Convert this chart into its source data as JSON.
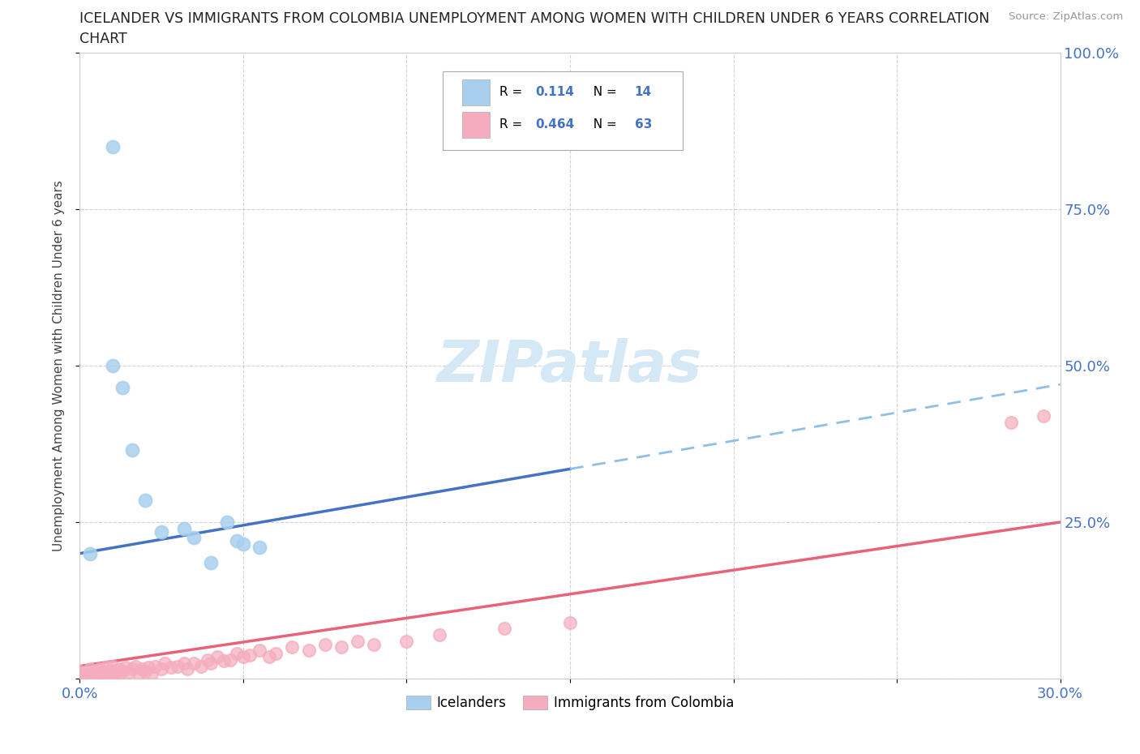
{
  "title_line1": "ICELANDER VS IMMIGRANTS FROM COLOMBIA UNEMPLOYMENT AMONG WOMEN WITH CHILDREN UNDER 6 YEARS CORRELATION",
  "title_line2": "CHART",
  "source": "Source: ZipAtlas.com",
  "ylabel": "Unemployment Among Women with Children Under 6 years",
  "xlim": [
    0.0,
    0.3
  ],
  "ylim": [
    0.0,
    1.0
  ],
  "xtick_pos": [
    0.0,
    0.05,
    0.1,
    0.15,
    0.2,
    0.25,
    0.3
  ],
  "xticklabels": [
    "0.0%",
    "",
    "",
    "",
    "",
    "",
    "30.0%"
  ],
  "ytick_pos": [
    0.0,
    0.25,
    0.5,
    0.75,
    1.0
  ],
  "yticklabels": [
    "",
    "25.0%",
    "50.0%",
    "75.0%",
    "100.0%"
  ],
  "blue_scatter_color": "#A8D0EE",
  "pink_scatter_color": "#F4ACBE",
  "blue_line_color": "#4472C4",
  "pink_line_color": "#E8637A",
  "blue_dashed_color": "#8DBFE8",
  "icelanders_R": 0.114,
  "icelanders_N": 14,
  "colombia_R": 0.464,
  "colombia_N": 63,
  "watermark_color": "#D5E8F5",
  "background_color": "#FFFFFF",
  "grid_color": "#C8C8C8",
  "tick_label_color": "#4472C4",
  "title_color": "#222222",
  "source_color": "#999999",
  "ylabel_color": "#444444",
  "icelanders_x": [
    0.003,
    0.01,
    0.01,
    0.013,
    0.016,
    0.02,
    0.025,
    0.032,
    0.035,
    0.04,
    0.045,
    0.048,
    0.05,
    0.055
  ],
  "icelanders_y": [
    0.2,
    0.85,
    0.5,
    0.465,
    0.365,
    0.285,
    0.235,
    0.24,
    0.225,
    0.185,
    0.25,
    0.22,
    0.215,
    0.21
  ],
  "colombia_x": [
    0.0,
    0.0,
    0.0,
    0.002,
    0.003,
    0.003,
    0.004,
    0.005,
    0.005,
    0.006,
    0.006,
    0.007,
    0.008,
    0.008,
    0.009,
    0.01,
    0.01,
    0.01,
    0.011,
    0.012,
    0.012,
    0.013,
    0.014,
    0.015,
    0.016,
    0.017,
    0.018,
    0.019,
    0.02,
    0.021,
    0.022,
    0.023,
    0.025,
    0.026,
    0.028,
    0.03,
    0.032,
    0.033,
    0.035,
    0.037,
    0.039,
    0.04,
    0.042,
    0.044,
    0.046,
    0.048,
    0.05,
    0.052,
    0.055,
    0.058,
    0.06,
    0.065,
    0.07,
    0.075,
    0.08,
    0.085,
    0.09,
    0.1,
    0.11,
    0.13,
    0.15,
    0.285,
    0.295
  ],
  "colombia_y": [
    0.005,
    0.008,
    0.012,
    0.005,
    0.01,
    0.015,
    0.008,
    0.005,
    0.012,
    0.008,
    0.015,
    0.01,
    0.005,
    0.018,
    0.01,
    0.005,
    0.012,
    0.02,
    0.01,
    0.008,
    0.015,
    0.012,
    0.018,
    0.01,
    0.015,
    0.02,
    0.008,
    0.015,
    0.012,
    0.018,
    0.008,
    0.02,
    0.015,
    0.025,
    0.018,
    0.02,
    0.025,
    0.015,
    0.025,
    0.02,
    0.03,
    0.025,
    0.035,
    0.028,
    0.03,
    0.04,
    0.035,
    0.038,
    0.045,
    0.035,
    0.04,
    0.05,
    0.045,
    0.055,
    0.05,
    0.06,
    0.055,
    0.06,
    0.07,
    0.08,
    0.09,
    0.41,
    0.42
  ]
}
